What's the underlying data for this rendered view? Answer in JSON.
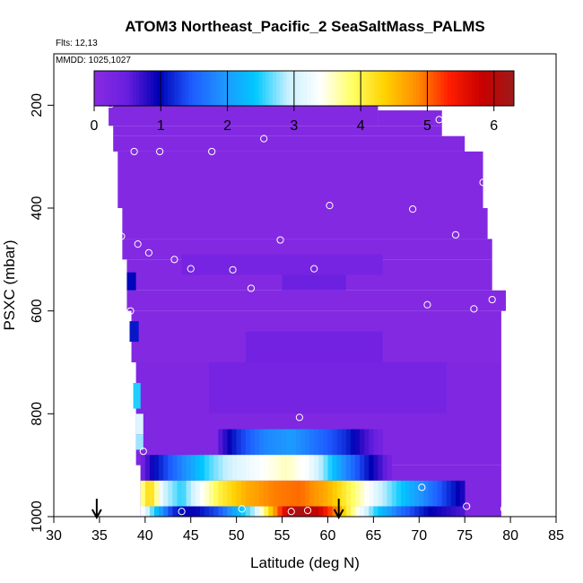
{
  "chart_data": {
    "type": "heatmap",
    "title": "ATOM3 Northeast_Pacific_2 SeaSaltMass_PALMS",
    "flights_label": "Flts: 12,13",
    "date_label": "MMDD: 1025,1027",
    "xlabel": "Latitude (deg N)",
    "ylabel": "PSXC (mbar)",
    "xlim": [
      30,
      85
    ],
    "ylim": [
      1000,
      100
    ],
    "x_ticks": [
      30,
      35,
      40,
      45,
      50,
      55,
      60,
      65,
      70,
      75,
      80,
      85
    ],
    "y_ticks": [
      200,
      400,
      600,
      800,
      1000
    ],
    "colorbar": {
      "range": [
        0,
        6.3
      ],
      "ticks": [
        0,
        1,
        2,
        3,
        4,
        5,
        6
      ],
      "colors": [
        "#8a2be2",
        "#6a1fe0",
        "#0000b4",
        "#1e5aff",
        "#1e96ff",
        "#00c8ff",
        "#c8f0ff",
        "#ffffff",
        "#ffff64",
        "#ffd200",
        "#ff8c00",
        "#ff1e00",
        "#c80000",
        "#9e1a1a"
      ]
    },
    "regions": [
      {
        "lat": [
          36,
          65.5
        ],
        "p": [
          170,
          240
        ],
        "value": 0.1
      },
      {
        "lat": [
          65.5,
          72.5
        ],
        "p": [
          210,
          240
        ],
        "value": 0.1
      },
      {
        "lat": [
          36.5,
          72.5
        ],
        "p": [
          240,
          260
        ],
        "value": 0.1
      },
      {
        "lat": [
          36.5,
          75
        ],
        "p": [
          260,
          290
        ],
        "value": 0.1
      },
      {
        "lat": [
          37,
          77
        ],
        "p": [
          290,
          400
        ],
        "value": 0.1
      },
      {
        "lat": [
          37.5,
          77.5
        ],
        "p": [
          400,
          460
        ],
        "value": 0.1
      },
      {
        "lat": [
          37.5,
          78
        ],
        "p": [
          460,
          500
        ],
        "value": 0.1
      },
      {
        "lat": [
          38,
          78
        ],
        "p": [
          500,
          560
        ],
        "value": 0.1
      },
      {
        "lat": [
          38,
          79.5
        ],
        "p": [
          560,
          600
        ],
        "value": 0.1
      },
      {
        "lat": [
          38.5,
          79
        ],
        "p": [
          600,
          700
        ],
        "value": 0.1
      },
      {
        "lat": [
          39,
          79
        ],
        "p": [
          700,
          900
        ],
        "value": 0.15
      },
      {
        "lat": [
          39.5,
          79
        ],
        "p": [
          900,
          1000
        ],
        "value": 0.15
      },
      {
        "lat": [
          44,
          66
        ],
        "p": [
          490,
          530
        ],
        "value": 0.3
      },
      {
        "lat": [
          55,
          62
        ],
        "p": [
          530,
          560
        ],
        "value": 0.45
      },
      {
        "lat": [
          51,
          66
        ],
        "p": [
          640,
          700
        ],
        "value": 0.35
      },
      {
        "lat": [
          47,
          73
        ],
        "p": [
          700,
          800
        ],
        "value": 0.3
      },
      {
        "lat": [
          38,
          39
        ],
        "p": [
          525,
          560
        ],
        "value": 1.0
      },
      {
        "lat": [
          38.3,
          39.3
        ],
        "p": [
          620,
          660
        ],
        "value": 1.1
      },
      {
        "lat": [
          38.7,
          39.5
        ],
        "p": [
          740,
          790
        ],
        "value": 2.5
      },
      {
        "lat": [
          39,
          39.8
        ],
        "p": [
          800,
          840
        ],
        "value": 3.1
      },
      {
        "lat": [
          39,
          39.8
        ],
        "p": [
          840,
          870
        ],
        "value": 2.8
      }
    ],
    "bands": [
      {
        "p": [
          830,
          880
        ],
        "lat": [
          48,
          66
        ],
        "profile": [
          [
            48,
            0.5
          ],
          [
            50,
            1.2
          ],
          [
            53,
            1.8
          ],
          [
            56,
            2.0
          ],
          [
            59,
            1.6
          ],
          [
            62,
            1.2
          ],
          [
            64,
            0.7
          ],
          [
            66,
            0.3
          ]
        ]
      },
      {
        "p": [
          880,
          930
        ],
        "lat": [
          39.5,
          67
        ],
        "profile": [
          [
            39.5,
            0.3
          ],
          [
            41,
            1.0
          ],
          [
            44,
            1.8
          ],
          [
            47,
            2.6
          ],
          [
            50,
            3.1
          ],
          [
            53,
            3.4
          ],
          [
            55.5,
            3.6
          ],
          [
            58,
            3.3
          ],
          [
            60,
            2.6
          ],
          [
            62,
            1.8
          ],
          [
            64,
            1.2
          ],
          [
            66,
            0.6
          ],
          [
            67,
            0.3
          ]
        ]
      },
      {
        "p": [
          930,
          980
        ],
        "lat": [
          39.5,
          75
        ],
        "profile": [
          [
            39.5,
            3.6
          ],
          [
            40.5,
            4.4
          ],
          [
            42,
            3.0
          ],
          [
            44,
            2.5
          ],
          [
            46,
            3.3
          ],
          [
            48,
            4.0
          ],
          [
            51,
            4.6
          ],
          [
            54,
            4.9
          ],
          [
            57,
            5.0
          ],
          [
            60,
            4.6
          ],
          [
            63,
            3.8
          ],
          [
            66,
            2.9
          ],
          [
            69,
            2.2
          ],
          [
            72,
            1.5
          ],
          [
            75,
            0.8
          ]
        ]
      },
      {
        "p": [
          980,
          1000
        ],
        "lat": [
          39.5,
          75
        ],
        "profile": [
          [
            39.5,
            3.5
          ],
          [
            41,
            2.5
          ],
          [
            43,
            1.2
          ],
          [
            45,
            0.9
          ],
          [
            48,
            1.4
          ],
          [
            50,
            2.2
          ],
          [
            52,
            2.9
          ],
          [
            54,
            4.6
          ],
          [
            55.5,
            5.8
          ],
          [
            57,
            6.2
          ],
          [
            59,
            5.8
          ],
          [
            61,
            4.8
          ],
          [
            63,
            3.6
          ],
          [
            65,
            2.6
          ],
          [
            68,
            1.6
          ],
          [
            71,
            1.0
          ],
          [
            75,
            0.6
          ]
        ]
      }
    ],
    "points": [
      {
        "lat": 36.2,
        "p": 198
      },
      {
        "lat": 65.5,
        "p": 185
      },
      {
        "lat": 72.2,
        "p": 228
      },
      {
        "lat": 38.8,
        "p": 290
      },
      {
        "lat": 41.6,
        "p": 290
      },
      {
        "lat": 47.3,
        "p": 290
      },
      {
        "lat": 53,
        "p": 265
      },
      {
        "lat": 77,
        "p": 350
      },
      {
        "lat": 60.2,
        "p": 395
      },
      {
        "lat": 69.3,
        "p": 402
      },
      {
        "lat": 37.4,
        "p": 455
      },
      {
        "lat": 39.2,
        "p": 470
      },
      {
        "lat": 40.4,
        "p": 487
      },
      {
        "lat": 43.2,
        "p": 500
      },
      {
        "lat": 54.8,
        "p": 462
      },
      {
        "lat": 74,
        "p": 452
      },
      {
        "lat": 45,
        "p": 518
      },
      {
        "lat": 49.6,
        "p": 520
      },
      {
        "lat": 58.5,
        "p": 518
      },
      {
        "lat": 51.6,
        "p": 556
      },
      {
        "lat": 70.9,
        "p": 588
      },
      {
        "lat": 76,
        "p": 596
      },
      {
        "lat": 78,
        "p": 578
      },
      {
        "lat": 38.4,
        "p": 600
      },
      {
        "lat": 56.9,
        "p": 807
      },
      {
        "lat": 39.8,
        "p": 873
      },
      {
        "lat": 70.3,
        "p": 943
      },
      {
        "lat": 44,
        "p": 990
      },
      {
        "lat": 50.6,
        "p": 985
      },
      {
        "lat": 56,
        "p": 990
      },
      {
        "lat": 57.8,
        "p": 988
      },
      {
        "lat": 75.2,
        "p": 980
      },
      {
        "lat": 79.3,
        "p": 985
      }
    ],
    "arrows": [
      34.7,
      61.2
    ]
  }
}
